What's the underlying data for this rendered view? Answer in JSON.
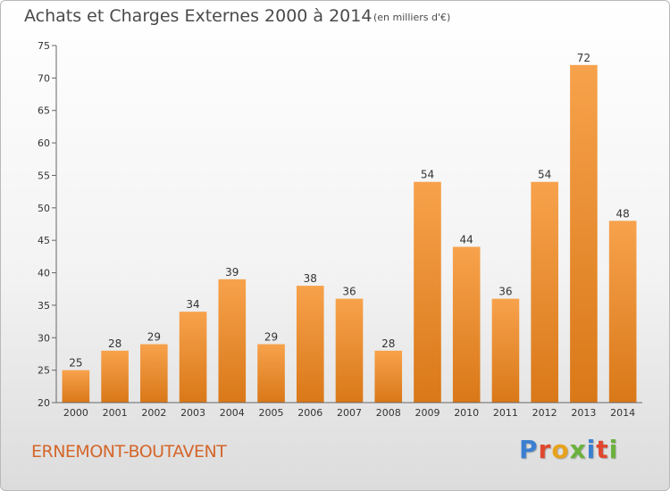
{
  "header": {
    "title": "Achats et Charges Externes 2000 à 2014",
    "unit": "(en milliers d'€)"
  },
  "footer": {
    "commune": "ERNEMONT-BOUTAVENT",
    "logo_text": "Proxiti",
    "logo_colors": [
      "#3b7fd1",
      "#e0472e",
      "#e8a21c",
      "#6ab23e",
      "#3b7fd1",
      "#e0472e",
      "#6ab23e"
    ]
  },
  "colors": {
    "bar_top": "#f7a24c",
    "bar_bottom": "#d97818",
    "commune_text": "#d4662a"
  },
  "chart_data": {
    "type": "bar",
    "title": "Achats et Charges Externes 2000 à 2014",
    "subtitle": "(en milliers d'€)",
    "xlabel": "",
    "ylabel": "",
    "categories": [
      "2000",
      "2001",
      "2002",
      "2003",
      "2004",
      "2005",
      "2006",
      "2007",
      "2008",
      "2009",
      "2010",
      "2011",
      "2012",
      "2013",
      "2014"
    ],
    "values": [
      25,
      28,
      29,
      34,
      39,
      29,
      38,
      36,
      28,
      54,
      44,
      36,
      54,
      72,
      48
    ],
    "data_labels": [
      "25",
      "28",
      "29",
      "34",
      "39",
      "29",
      "38",
      "36",
      "28",
      "54",
      "44",
      "36",
      "54",
      "72",
      "48"
    ],
    "ylim": [
      20,
      75
    ],
    "yticks": [
      20,
      25,
      30,
      35,
      40,
      45,
      50,
      55,
      60,
      65,
      70,
      75
    ],
    "grid": false,
    "legend": "none"
  }
}
